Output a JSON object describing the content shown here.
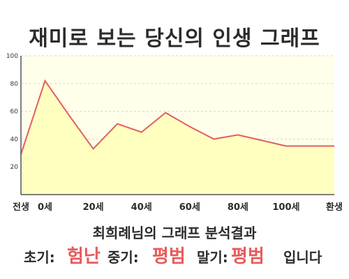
{
  "title": "재미로 보는 당신의 인생 그래프",
  "subtitle": "최희례님의 그래프 분석결과",
  "result": {
    "early_label": "초기:",
    "early_value": "험난",
    "mid_label": "중기:",
    "mid_value": "평범",
    "late_label": "말기:",
    "late_value": "평범",
    "ending": "입니다"
  },
  "colors": {
    "line": "#e06060",
    "fill": "#ffffbf",
    "plot_bg": "#ffffea",
    "accent": "#e85b5b"
  },
  "chart_data": {
    "type": "area",
    "x": [
      -10,
      0,
      10,
      20,
      30,
      40,
      50,
      60,
      70,
      80,
      90,
      100,
      110,
      120
    ],
    "values": [
      29,
      82,
      57,
      33,
      51,
      45,
      59,
      49,
      40,
      43,
      39,
      35,
      35,
      35
    ],
    "ylim": [
      0,
      100
    ],
    "yticks": [
      20,
      40,
      60,
      80,
      100
    ],
    "xticks": [
      {
        "x": -10,
        "label": "전생"
      },
      {
        "x": 0,
        "label": "0세"
      },
      {
        "x": 20,
        "label": "20세"
      },
      {
        "x": 40,
        "label": "40세"
      },
      {
        "x": 60,
        "label": "60세"
      },
      {
        "x": 80,
        "label": "80세"
      },
      {
        "x": 100,
        "label": "100세"
      },
      {
        "x": 120,
        "label": "환생"
      }
    ],
    "grid": true
  }
}
